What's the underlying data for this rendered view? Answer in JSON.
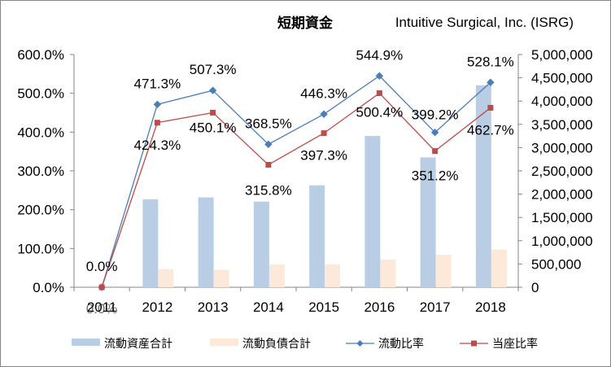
{
  "chart_data": {
    "type": "bar",
    "title": "短期資金",
    "subtitle": "Intuitive Surgical, Inc. (ISRG)",
    "categories": [
      "2011",
      "2012",
      "2013",
      "2014",
      "2015",
      "2016",
      "2017",
      "2018"
    ],
    "left_axis": {
      "ylim": [
        0,
        600
      ],
      "ticks": [
        "0.0%",
        "100.0%",
        "200.0%",
        "300.0%",
        "400.0%",
        "500.0%",
        "600.0%"
      ]
    },
    "right_axis": {
      "ylim": [
        0,
        5000000
      ],
      "ticks": [
        "0",
        "500,000",
        "1,000,000",
        "1,500,000",
        "2,000,000",
        "2,500,000",
        "3,000,000",
        "3,500,000",
        "4,000,000",
        "4,500,000",
        "5,000,000"
      ]
    },
    "series": [
      {
        "name": "流動資産合計",
        "kind": "bar",
        "axis": "right",
        "color": "#b9cde5",
        "values": [
          0,
          1890000,
          1930000,
          1840000,
          2190000,
          3250000,
          2790000,
          4340000
        ]
      },
      {
        "name": "流動負債合計",
        "kind": "bar",
        "axis": "right",
        "color": "#fde9d9",
        "values": [
          0,
          390000,
          375000,
          490000,
          495000,
          595000,
          700000,
          810000
        ]
      },
      {
        "name": "流動比率",
        "kind": "line",
        "axis": "left",
        "color": "#4a7ebb",
        "marker": "diamond",
        "values": [
          0.0,
          471.3,
          507.3,
          368.5,
          446.3,
          544.9,
          399.2,
          528.1
        ],
        "labels": [
          "0.0%",
          "471.3%",
          "507.3%",
          "368.5%",
          "446.3%",
          "544.9%",
          "399.2%",
          "528.1%"
        ]
      },
      {
        "name": "当座比率",
        "kind": "line",
        "axis": "left",
        "color": "#be4b48",
        "marker": "square",
        "values": [
          0.0,
          424.3,
          450.1,
          315.8,
          397.3,
          500.4,
          351.2,
          462.7
        ],
        "labels": [
          "0.0%",
          "424.3%",
          "450.1%",
          "315.8%",
          "397.3%",
          "500.4%",
          "351.2%",
          "462.7%"
        ]
      }
    ],
    "legend_position": "bottom",
    "grid": false
  }
}
